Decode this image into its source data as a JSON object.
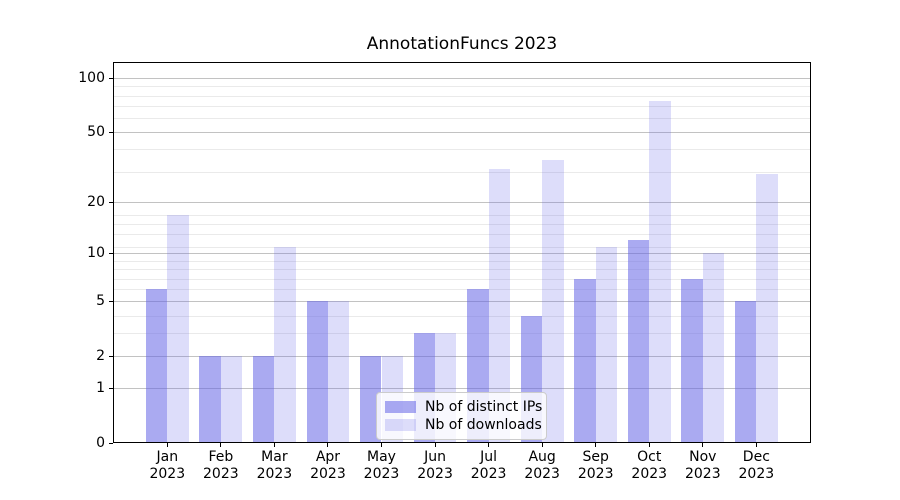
{
  "chart_data": {
    "type": "bar",
    "title": "AnnotationFuncs 2023",
    "categories": [
      "Jan",
      "Feb",
      "Mar",
      "Apr",
      "May",
      "Jun",
      "Jul",
      "Aug",
      "Sep",
      "Oct",
      "Nov",
      "Dec"
    ],
    "category_year": "2023",
    "series": [
      {
        "name": "Nb of distinct IPs",
        "values": [
          6,
          2,
          2,
          5,
          2,
          3,
          6,
          4,
          7,
          12,
          7,
          5
        ],
        "color": "rgba(100,100,230,0.55)"
      },
      {
        "name": "Nb of downloads",
        "values": [
          17,
          2,
          11,
          5,
          2,
          3,
          31,
          35,
          11,
          75,
          10,
          29
        ],
        "color": "rgba(100,100,230,0.22)"
      }
    ],
    "yscale": "log1p",
    "yticks": [
      0,
      1,
      2,
      5,
      10,
      20,
      50,
      100
    ],
    "y_minor_gridlines": [
      3,
      4,
      6,
      7,
      8,
      9,
      11,
      13,
      15,
      17,
      30,
      40,
      60,
      70,
      80,
      90
    ],
    "ylim": [
      0,
      123
    ],
    "grid": true,
    "legend_position": "lower center"
  },
  "legend": {
    "entries": [
      "Nb of distinct IPs",
      "Nb of downloads"
    ]
  },
  "colors": {
    "bar_distinct_ips": "rgba(100,100,230,0.55)",
    "bar_downloads": "rgba(100,100,230,0.22)",
    "grid_major": "#c2c2c2",
    "grid_minor": "#eaeaea",
    "axis": "#000000"
  }
}
